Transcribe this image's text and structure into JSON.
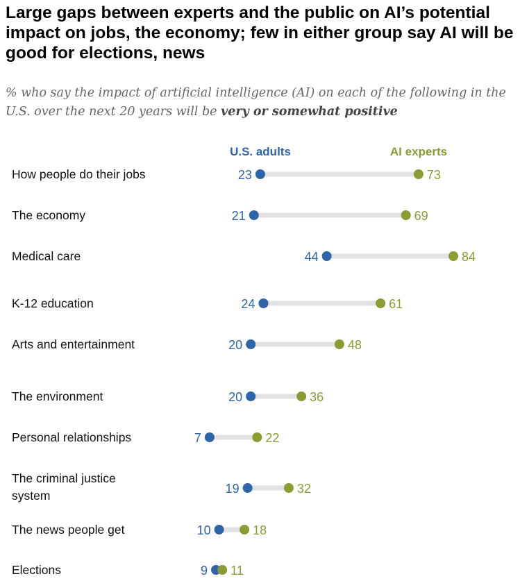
{
  "chart_data": {
    "type": "dumbbell",
    "title": "Large gaps between experts and the public on AI’s potential impact on jobs, the economy; few in either group say AI will be good for elections, news",
    "subtitle_prefix": "% who say the impact of artificial intelligence (AI) on each of the following in the U.S. over the next 20 years will be ",
    "subtitle_emphasis": "very or somewhat positive",
    "categories": [
      [
        "How people do their jobs"
      ],
      [
        "The economy"
      ],
      [
        "Medical care"
      ],
      [
        "K-12 education"
      ],
      [
        "Arts and entertainment"
      ],
      [
        "The environment"
      ],
      [
        "Personal relationships"
      ],
      [
        "The criminal justice",
        "system"
      ],
      [
        "The news people get"
      ],
      [
        "Elections"
      ]
    ],
    "series": [
      {
        "name": "U.S. adults",
        "color": "#2e64a8",
        "values": [
          23,
          21,
          44,
          24,
          20,
          20,
          7,
          19,
          10,
          9
        ]
      },
      {
        "name": "AI experts",
        "color": "#8a9c33",
        "values": [
          73,
          69,
          84,
          61,
          48,
          36,
          22,
          32,
          18,
          11
        ]
      }
    ],
    "xlim": [
      0,
      100
    ],
    "grid": false
  }
}
